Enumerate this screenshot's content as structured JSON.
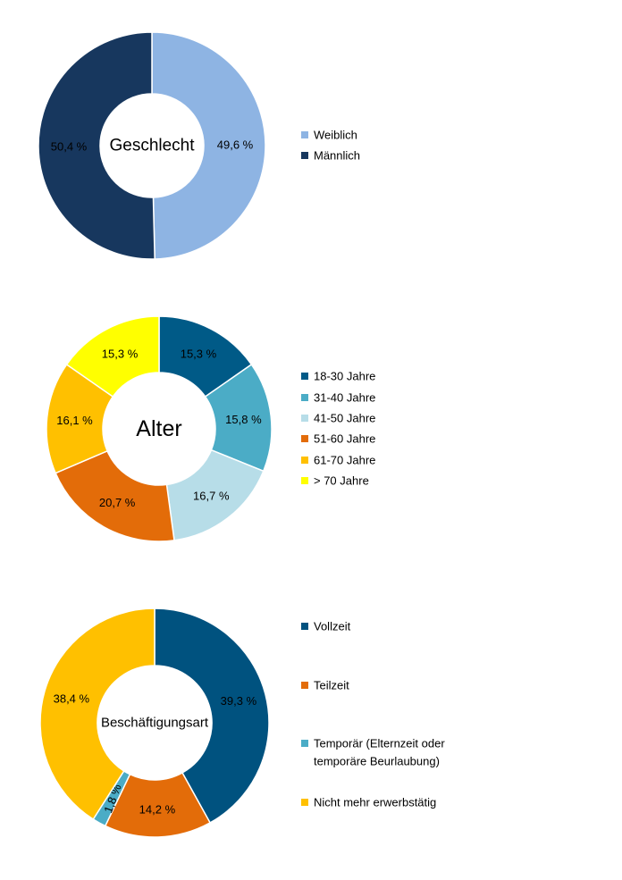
{
  "chart_data": [
    {
      "type": "pie",
      "variant": "donut",
      "center_label": "Geschlecht",
      "categories": [
        "Weiblich",
        "Männlich"
      ],
      "values": [
        49.6,
        50.4
      ],
      "value_labels": [
        "49,6 %",
        "50,4 %"
      ],
      "colors": [
        "#8EB4E3",
        "#17375E"
      ],
      "legend_position": "right",
      "legend": [
        {
          "label": "Weiblich",
          "color": "#8EB4E3"
        },
        {
          "label": "Männlich",
          "color": "#17375E"
        }
      ]
    },
    {
      "type": "pie",
      "variant": "donut",
      "center_label": "Alter",
      "categories": [
        "18-30 Jahre",
        "31-40 Jahre",
        "41-50 Jahre",
        "51-60 Jahre",
        "61-70 Jahre",
        "> 70 Jahre"
      ],
      "values": [
        15.3,
        15.8,
        16.7,
        20.7,
        16.1,
        15.3
      ],
      "value_labels": [
        "15,3 %",
        "15,8 %",
        "16,7 %",
        "20,7 %",
        "16,1 %",
        "15,3 %"
      ],
      "colors": [
        "#005A87",
        "#4BACC6",
        "#B7DDE8",
        "#E36C09",
        "#FFC000",
        "#FFFF00"
      ],
      "legend_position": "right",
      "legend": [
        {
          "label": "18-30 Jahre",
          "color": "#005A87"
        },
        {
          "label": "31-40 Jahre",
          "color": "#4BACC6"
        },
        {
          "label": "41-50 Jahre",
          "color": "#B7DDE8"
        },
        {
          "label": "51-60 Jahre",
          "color": "#E36C09"
        },
        {
          "label": "61-70 Jahre",
          "color": "#FFC000"
        },
        {
          "label": "> 70 Jahre",
          "color": "#FFFF00"
        }
      ]
    },
    {
      "type": "pie",
      "variant": "donut",
      "center_label": "Beschäftigungsart",
      "categories": [
        "Vollzeit",
        "Teilzeit",
        "Temporär (Elternzeit oder temporäre Beurlaubung)",
        "Nicht mehr erwerbstätig"
      ],
      "values": [
        39.3,
        14.2,
        1.8,
        38.4
      ],
      "value_labels": [
        "39,3 %",
        "14,2 %",
        "1,8 %",
        "38,4 %"
      ],
      "colors": [
        "#00527F",
        "#E36C09",
        "#4BACC6",
        "#FFC000"
      ],
      "legend_position": "right",
      "legend": [
        {
          "label": "Vollzeit",
          "color": "#00527F"
        },
        {
          "label": "Teilzeit",
          "color": "#E36C09"
        },
        {
          "label": [
            "Temporär (Elternzeit oder",
            "temporäre Beurlaubung)"
          ],
          "color": "#4BACC6"
        },
        {
          "label": "Nicht mehr erwerbstätig",
          "color": "#FFC000"
        }
      ]
    }
  ]
}
